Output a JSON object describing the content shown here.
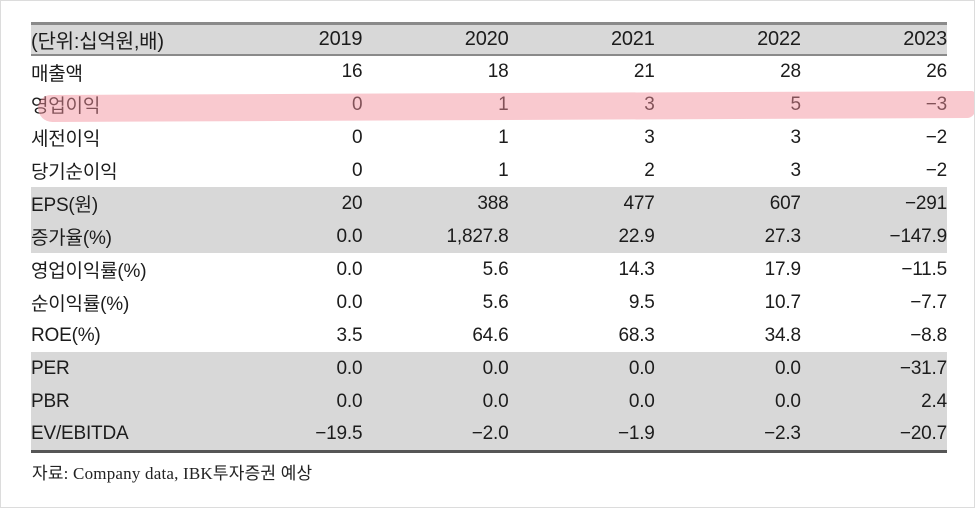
{
  "table": {
    "unit_label": "(단위:십억원,배)",
    "header": {
      "years": [
        "2019",
        "2020",
        "2021",
        "2022",
        "2023"
      ]
    },
    "rows": [
      {
        "label": "매출액",
        "values": [
          "16",
          "18",
          "21",
          "28",
          "26"
        ]
      },
      {
        "label": "영업이익",
        "values": [
          "0",
          "1",
          "3",
          "5",
          "−3"
        ],
        "highlighted": true
      },
      {
        "label": "세전이익",
        "values": [
          "0",
          "1",
          "3",
          "3",
          "−2"
        ]
      },
      {
        "label": "당기순이익",
        "values": [
          "0",
          "1",
          "2",
          "3",
          "−2"
        ]
      },
      {
        "label": "EPS(원)",
        "values": [
          "20",
          "388",
          "477",
          "607",
          "−291"
        ]
      },
      {
        "label": "증가율(%)",
        "values": [
          "0.0",
          "1,827.8",
          "22.9",
          "27.3",
          "−147.9"
        ]
      },
      {
        "label": "영업이익률(%)",
        "values": [
          "0.0",
          "5.6",
          "14.3",
          "17.9",
          "−11.5"
        ]
      },
      {
        "label": "순이익률(%)",
        "values": [
          "0.0",
          "5.6",
          "9.5",
          "10.7",
          "−7.7"
        ]
      },
      {
        "label": "ROE(%)",
        "values": [
          "3.5",
          "64.6",
          "68.3",
          "34.8",
          "−8.8"
        ]
      },
      {
        "label": "PER",
        "values": [
          "0.0",
          "0.0",
          "0.0",
          "0.0",
          "−31.7"
        ]
      },
      {
        "label": "PBR",
        "values": [
          "0.0",
          "0.0",
          "0.0",
          "0.0",
          "2.4"
        ]
      },
      {
        "label": "EV/EBITDA",
        "values": [
          "−19.5",
          "−2.0",
          "−1.9",
          "−2.3",
          "−20.7"
        ]
      }
    ]
  },
  "footer": {
    "source_text": "자료: Company data, IBK투자증권 예상"
  },
  "colors": {
    "highlight_pink": "#f9cdd2",
    "band_gray": "#d8d8d8",
    "border_dark": "#565656",
    "border_mid": "#8a8a8a"
  }
}
